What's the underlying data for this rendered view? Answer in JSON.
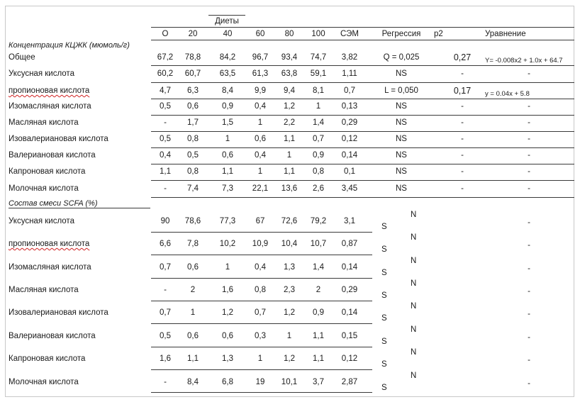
{
  "header": {
    "diets_label": "Диеты",
    "columns": [
      "О",
      "20",
      "40",
      "60",
      "80",
      "100",
      "СЭМ",
      "Регрессия",
      "р2",
      "Уравнение"
    ]
  },
  "section1": {
    "title": "Концентрация  КЦЖК (мюмоль/г)",
    "rows": [
      {
        "label": "Общее",
        "values": [
          "67,2",
          "78,8",
          "84,2",
          "96,7",
          "93,4",
          "74,7"
        ],
        "sem": "3,82",
        "regression": "Q = 0,025",
        "r2": "0,27",
        "equation": "Y= -0.008x2 + 1.0x + 64.7"
      },
      {
        "label": "Уксусная кислота",
        "values": [
          "60,2",
          "60,7",
          "63,5",
          "61,3",
          "63,8",
          "59,1"
        ],
        "sem": "1,11",
        "regression": "NS",
        "r2": "-",
        "equation": "-"
      },
      {
        "label": "пропионовая кислота",
        "values": [
          "4,7",
          "6,3",
          "8,4",
          "9,9",
          "9,4",
          "8,1"
        ],
        "sem": "0,7",
        "regression": "L = 0,050",
        "r2": "0,17",
        "equation": "y = 0.04x + 5.8"
      },
      {
        "label": "Изомасляная кислота",
        "values": [
          "0,5",
          "0,6",
          "0,9",
          "0,4",
          "1,2",
          "1"
        ],
        "sem": "0,13",
        "regression": "NS",
        "r2": "-",
        "equation": "-"
      },
      {
        "label": "Масляная кислота",
        "values": [
          "-",
          "1,7",
          "1,5",
          "1",
          "2,2",
          "1,4"
        ],
        "sem": "0,29",
        "regression": "NS",
        "r2": "-",
        "equation": "-"
      },
      {
        "label": "Изовалериановая кислота",
        "values": [
          "0,5",
          "0,8",
          "1",
          "0,6",
          "1,1",
          "0,7"
        ],
        "sem": "0,12",
        "regression": "NS",
        "r2": "-",
        "equation": "-"
      },
      {
        "label": "Валериановая кислота",
        "values": [
          "0,4",
          "0,5",
          "0,6",
          "0,4",
          "1",
          "0,9"
        ],
        "sem": "0,14",
        "regression": "NS",
        "r2": "-",
        "equation": "-"
      },
      {
        "label": "Капроновая кислота",
        "values": [
          "1,1",
          "0,8",
          "1,1",
          "1",
          "1,1",
          "0,8"
        ],
        "sem": "0,1",
        "regression": "NS",
        "r2": "-",
        "equation": "-"
      },
      {
        "label": "Молочная кислота",
        "values": [
          "-",
          "7,4",
          "7,3",
          "22,1",
          "13,6",
          "2,6"
        ],
        "sem": "3,45",
        "regression": "NS",
        "r2": "-",
        "equation": "-"
      }
    ]
  },
  "section2": {
    "title": "Состав смеси SCFA (%)",
    "ns_top": "N",
    "ns_bottom": "S",
    "rows": [
      {
        "label": "Уксусная кислота",
        "values": [
          "90",
          "78,6",
          "77,3",
          "67",
          "72,6",
          "79,2"
        ],
        "sem": "3,1",
        "equation": "-"
      },
      {
        "label": "пропионовая кислота",
        "values": [
          "6,6",
          "7,8",
          "10,2",
          "10,9",
          "10,4",
          "10,7"
        ],
        "sem": "0,87",
        "equation": "-"
      },
      {
        "label": "Изомасляная кислота",
        "values": [
          "0,7",
          "0,6",
          "1",
          "0,4",
          "1,3",
          "1,4"
        ],
        "sem": "0,14",
        "equation": "-"
      },
      {
        "label": "Масляная кислота",
        "values": [
          "-",
          "2",
          "1,6",
          "0,8",
          "2,3",
          "2"
        ],
        "sem": "0,29",
        "equation": "-"
      },
      {
        "label": "Изовалериановая кислота",
        "values": [
          "0,7",
          "1",
          "1,2",
          "0,7",
          "1,2",
          "0,9"
        ],
        "sem": "0,14",
        "equation": "-"
      },
      {
        "label": "Валериановая кислота",
        "values": [
          "0,5",
          "0,6",
          "0,6",
          "0,3",
          "1",
          "1,1"
        ],
        "sem": "0,15",
        "equation": "-"
      },
      {
        "label": "Капроновая кислота",
        "values": [
          "1,6",
          "1,1",
          "1,3",
          "1",
          "1,2",
          "1,1"
        ],
        "sem": "0,12",
        "equation": "-"
      },
      {
        "label": "Молочная кислота",
        "values": [
          "-",
          "8,4",
          "6,8",
          "19",
          "10,1",
          "3,7"
        ],
        "sem": "2,87",
        "equation": "-"
      }
    ]
  }
}
